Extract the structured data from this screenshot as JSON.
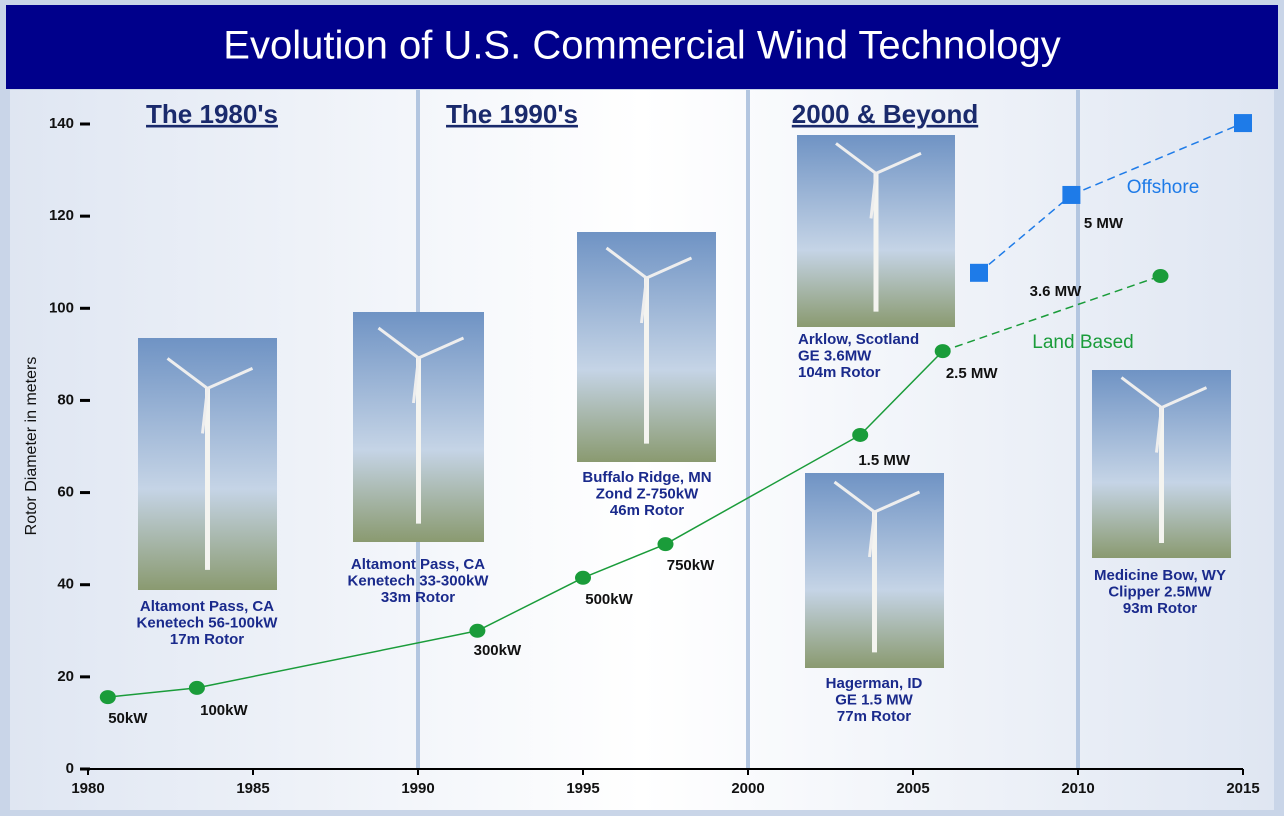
{
  "chart_data": {
    "type": "line",
    "title": "Evolution of U.S. Commercial Wind Technology",
    "ylabel": "Rotor Diameter in meters",
    "xlim": [
      1980,
      2015
    ],
    "xticks": [
      1980,
      1985,
      1990,
      1995,
      2000,
      2005,
      2010,
      2015
    ],
    "ylim": [
      0,
      140
    ],
    "yticks": [
      0,
      20,
      40,
      60,
      80,
      100,
      120,
      140
    ],
    "vertical_lines": [
      1990,
      2000,
      2010
    ],
    "eras": [
      "The 1980's",
      "The 1990's",
      "2000 & Beyond"
    ],
    "series": [
      {
        "name": "Land Based",
        "color": "#1a9c3a",
        "marker": "circle",
        "last_segment_dashed": true,
        "x": [
          1980.6,
          1983.3,
          1991.8,
          1995.0,
          1997.5,
          2003.4,
          2005.9,
          2012.5
        ],
        "values": [
          15.6,
          17.6,
          30,
          41.5,
          48.8,
          72.5,
          90.7,
          107
        ],
        "value_labels": [
          "50kW",
          "100kW",
          "300kW",
          "500kW",
          "750kW",
          "1.5 MW",
          "2.5 MW",
          "3.6 MW"
        ]
      },
      {
        "name": "Offshore",
        "color": "#1e7be8",
        "marker": "square",
        "dashed": true,
        "x": [
          2007.0,
          2009.8,
          2015.0
        ],
        "values": [
          107.7,
          124.6,
          140.2
        ],
        "value_labels": [
          null,
          "5 MW",
          null
        ]
      }
    ],
    "photos": [
      {
        "caption": [
          "Altamont Pass, CA",
          "Kenetech 56-100kW",
          "17m Rotor"
        ]
      },
      {
        "caption": [
          "Altamont Pass, CA",
          "Kenetech 33-300kW",
          "33m Rotor"
        ]
      },
      {
        "caption": [
          "Buffalo Ridge, MN",
          "Zond Z-750kW",
          "46m Rotor"
        ]
      },
      {
        "caption": [
          "Arklow, Scotland",
          "GE 3.6MW",
          "104m Rotor"
        ]
      },
      {
        "caption": [
          "Hagerman, ID",
          "GE 1.5 MW",
          "77m Rotor"
        ]
      },
      {
        "caption": [
          "Medicine Bow, WY",
          "Clipper 2.5MW",
          "93m Rotor"
        ]
      }
    ]
  }
}
